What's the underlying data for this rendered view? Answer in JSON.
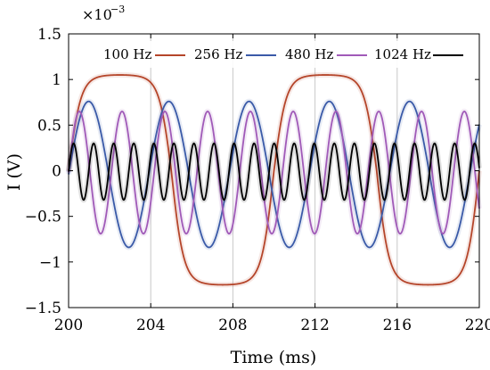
{
  "chart_data": {
    "type": "line",
    "xlabel": "Time (ms)",
    "ylabel": "I (V)",
    "y_multiplier": "×10",
    "y_multiplier_exp": "−3",
    "xlim": [
      200,
      220
    ],
    "ylim": [
      -1.5,
      1.5
    ],
    "x_ticks": [
      200,
      204,
      208,
      212,
      216,
      220
    ],
    "x_tick_labels": [
      "200",
      "204",
      "208",
      "212",
      "216",
      "220"
    ],
    "y_ticks": [
      1.5,
      1,
      0.5,
      0,
      -0.5,
      -1,
      -1.5
    ],
    "y_tick_labels": [
      "1.5",
      "1",
      "0.5",
      "0",
      "−0.5",
      "−1",
      "−1.5"
    ],
    "grid": "vertical",
    "legend_position": "top",
    "series": [
      {
        "name": "100 Hz",
        "color": "#b5452a",
        "shape": "clipped-sine",
        "frequency_hz": 100,
        "x": [
          200,
          201,
          202,
          203,
          204,
          205,
          206,
          207,
          208,
          209,
          210,
          211,
          212,
          213,
          214,
          215,
          216,
          217,
          218,
          219,
          220
        ],
        "values": [
          0.0,
          1.02,
          1.05,
          1.05,
          0.95,
          0.0,
          -0.95,
          -1.25,
          -1.25,
          -1.2,
          0.0,
          1.02,
          1.05,
          1.05,
          0.95,
          0.0,
          -0.95,
          -1.25,
          -1.25,
          -1.2,
          0.0
        ]
      },
      {
        "name": "256 Hz",
        "color": "#3a5aa8",
        "shape": "sine",
        "frequency_hz": 256,
        "amplitude": 0.8,
        "offset": -0.04,
        "phase_deg": 0
      },
      {
        "name": "480 Hz",
        "color": "#a05ab8",
        "shape": "sine",
        "frequency_hz": 480,
        "amplitude": 0.67,
        "offset": -0.02,
        "phase_deg": 0
      },
      {
        "name": "1024 Hz",
        "color": "#000000",
        "shape": "sine",
        "frequency_hz": 1024,
        "amplitude": 0.31,
        "offset": -0.01,
        "phase_deg": 0
      }
    ]
  }
}
